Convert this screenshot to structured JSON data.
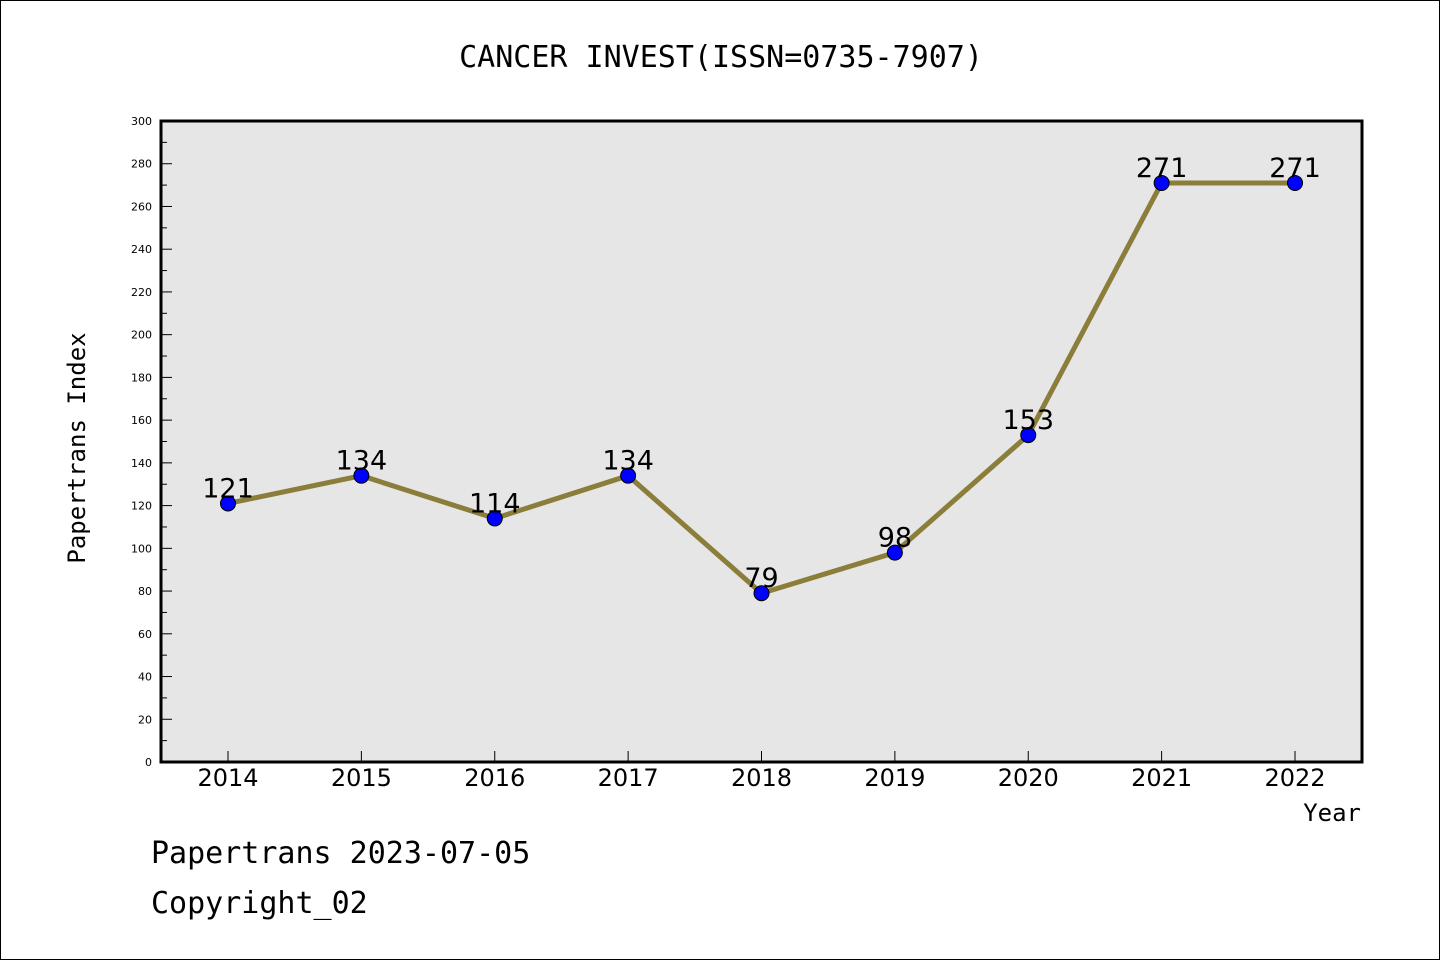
{
  "chart_data": {
    "type": "line",
    "title": "CANCER INVEST(ISSN=0735-7907)",
    "xlabel": "Year",
    "ylabel": "Papertrans Index",
    "categories": [
      "2014",
      "2015",
      "2016",
      "2017",
      "2018",
      "2019",
      "2020",
      "2021",
      "2022"
    ],
    "values": [
      121,
      134,
      114,
      134,
      79,
      98,
      153,
      271,
      271
    ],
    "data_labels": [
      "121",
      "134",
      "114",
      "134",
      "79",
      "98",
      "153",
      "271",
      "271"
    ],
    "ylim": [
      0,
      300
    ],
    "yticks": [
      0,
      20,
      40,
      60,
      80,
      100,
      120,
      140,
      160,
      180,
      200,
      220,
      240,
      260,
      280,
      300
    ],
    "ytick_labels": [
      "0",
      "20",
      "40",
      "60",
      "80",
      "100",
      "120",
      "140",
      "160",
      "180",
      "200",
      "220",
      "240",
      "260",
      "280",
      "300"
    ],
    "grid": false,
    "legend": "none",
    "colors": {
      "line": "#8B7D3A",
      "marker": "#0000FF",
      "plot_background": "#E6E6E6"
    }
  },
  "footer": {
    "line1": "Papertrans 2023-07-05",
    "line2": "Copyright_02"
  }
}
